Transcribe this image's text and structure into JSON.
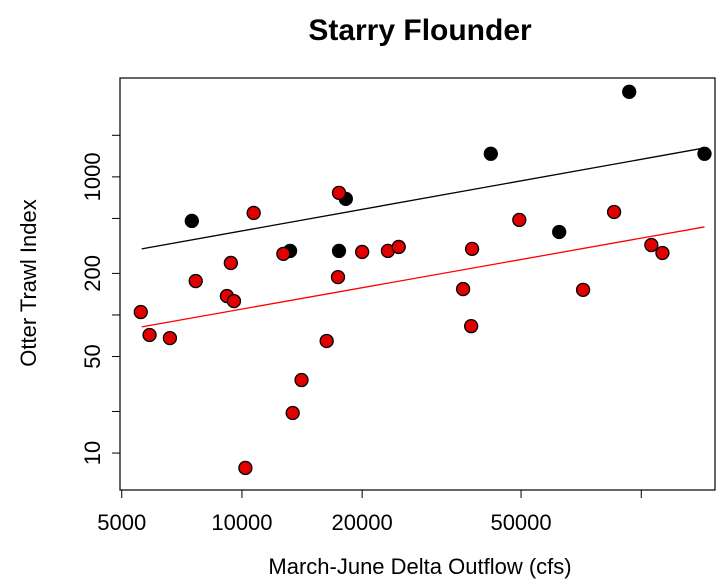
{
  "chart_data": {
    "type": "scatter",
    "title": "Starry Flounder",
    "x_label": "March-June Delta Outflow (cfs)",
    "y_label": "Otter Trawl Index",
    "xlog": true,
    "ylog": true,
    "xlim": [
      4950,
      153000
    ],
    "ylim": [
      5.4,
      5200
    ],
    "xticks": [
      5000,
      10000,
      20000,
      50000
    ],
    "xminor": [
      100000
    ],
    "yticks": [
      10,
      50,
      200,
      1000
    ],
    "yminor": [
      20,
      100,
      500,
      2000
    ],
    "groups": [
      {
        "color": "#000000",
        "x": [
          7490,
          13200,
          17500,
          18200,
          42000,
          62300,
          93300,
          144000
        ],
        "y": [
          480,
          291,
          291,
          693,
          1470,
          399,
          4130,
          1470
        ]
      },
      {
        "color": "#e00000",
        "x": [
          5580,
          5870,
          6600,
          7660,
          9170,
          9380,
          9550,
          10200,
          10700,
          12700,
          13400,
          14100,
          16300,
          17400,
          17500,
          20000,
          23200,
          24700,
          35800,
          37500,
          37700,
          49500,
          71500,
          85500,
          106000,
          113000
        ],
        "y": [
          105,
          71.6,
          68,
          176,
          137,
          238,
          126,
          7.8,
          548,
          277,
          19.5,
          33.8,
          64.8,
          188,
          766,
          286,
          291,
          311,
          154,
          83,
          301,
          488,
          152,
          557,
          321,
          281
        ]
      }
    ],
    "fit_lines": [
      {
        "color": "#000000",
        "x": [
          5610,
          144000
        ],
        "y": [
          301,
          1620
        ]
      },
      {
        "color": "#ff0000",
        "x": [
          5610,
          144000
        ],
        "y": [
          82,
          434
        ]
      }
    ]
  }
}
